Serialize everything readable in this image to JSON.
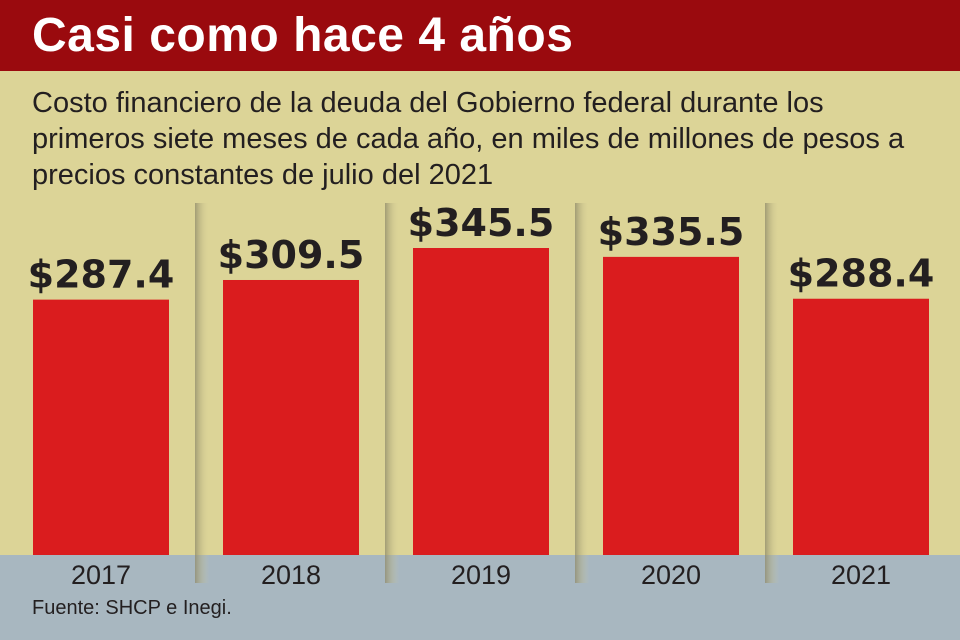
{
  "header": {
    "title": "Casi como hace 4 años",
    "background_color": "#9a0a0e",
    "title_color": "#ffffff"
  },
  "subtitle": "Costo financiero de la deuda del Gobierno federal durante los primeros siete meses de cada año, en miles de millones de pesos a precios constantes de julio del 2021",
  "source": "Fuente: SHCP e Inegi.",
  "colors": {
    "background": "#dcd497",
    "bar": "#da1c1e",
    "footer_band": "#a8b7c0",
    "text": "#231f20"
  },
  "chart_data": {
    "type": "bar",
    "categories": [
      "2017",
      "2018",
      "2019",
      "2020",
      "2021"
    ],
    "values": [
      287.4,
      309.5,
      345.5,
      335.5,
      288.4
    ],
    "data_labels": [
      "$287.4",
      "$309.5",
      "$345.5",
      "$335.5",
      "$288.4"
    ],
    "title": "Casi como hace 4 años",
    "xlabel": "",
    "ylabel": "",
    "ylim": [
      0,
      345.5
    ],
    "grid": false,
    "legend": "none"
  }
}
